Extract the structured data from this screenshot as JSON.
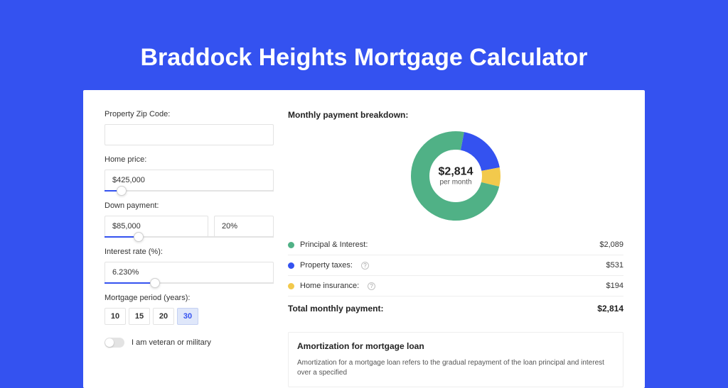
{
  "page": {
    "title": "Braddock Heights Mortgage Calculator",
    "accent_color": "#3452f0",
    "card_bg": "#ffffff",
    "border_color": "#e3e3e3"
  },
  "form": {
    "zip": {
      "label": "Property Zip Code:",
      "value": ""
    },
    "home_price": {
      "label": "Home price:",
      "value": "$425,000",
      "slider_pct": 10
    },
    "down_payment": {
      "label": "Down payment:",
      "value": "$85,000",
      "percent": "20%",
      "slider_pct": 20
    },
    "interest_rate": {
      "label": "Interest rate (%):",
      "value": "6.230%",
      "slider_pct": 30
    },
    "mortgage_period": {
      "label": "Mortgage period (years):",
      "options": [
        "10",
        "15",
        "20",
        "30"
      ],
      "selected": "30"
    },
    "veteran": {
      "label": "I am veteran or military",
      "checked": false
    }
  },
  "breakdown": {
    "heading": "Monthly payment breakdown:",
    "total": "$2,814",
    "sub": "per month",
    "donut": {
      "radius": 50,
      "stroke_width": 26,
      "segments": [
        {
          "name": "principal_interest",
          "label": "Principal & Interest:",
          "value": "$2,089",
          "color": "#50b186",
          "pct": 74.2
        },
        {
          "name": "property_taxes",
          "label": "Property taxes:",
          "value": "$531",
          "color": "#3452f0",
          "pct": 18.9,
          "info": true
        },
        {
          "name": "home_insurance",
          "label": "Home insurance:",
          "value": "$194",
          "color": "#f2c94c",
          "pct": 6.9,
          "info": true
        }
      ]
    },
    "total_row": {
      "label": "Total monthly payment:",
      "value": "$2,814"
    }
  },
  "amortization": {
    "heading": "Amortization for mortgage loan",
    "text": "Amortization for a mortgage loan refers to the gradual repayment of the loan principal and interest over a specified"
  }
}
